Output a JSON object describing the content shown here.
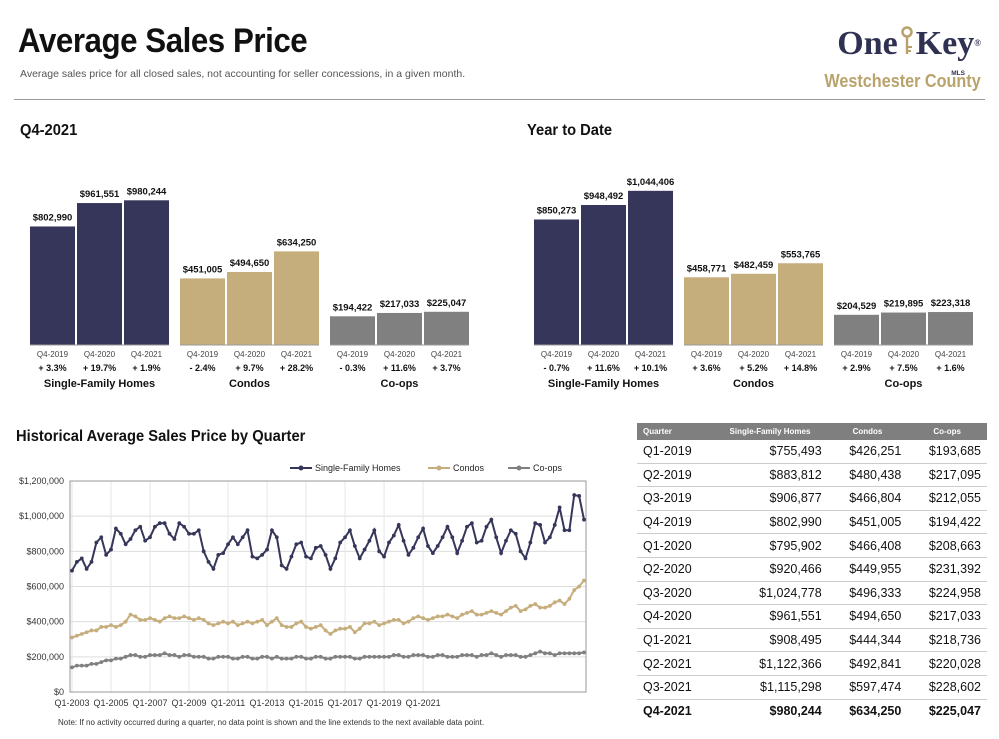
{
  "header": {
    "title": "Average Sales Price",
    "subtitle": "Average sales price for all closed sales, not accounting for seller concessions, in a given month.",
    "logo_left": "One",
    "logo_right": "Key",
    "logo_mls": "MLS",
    "logo_reg": "®",
    "county": "Westchester County"
  },
  "colors": {
    "sfh": "#35365a",
    "condo": "#c6ad7c",
    "coop": "#808080"
  },
  "sections": {
    "q4": "Q4-2021",
    "ytd": "Year to Date",
    "hist": "Historical Average Sales Price by Quarter"
  },
  "note": "Note: If no activity occurred during a quarter, no data point is shown and the line extends to the next available data point.",
  "chart_data": [
    {
      "type": "bar",
      "title": "Q4-2021",
      "groups": [
        {
          "name": "Single-Family Homes",
          "categories": [
            "Q4-2019",
            "Q4-2020",
            "Q4-2021"
          ],
          "values": [
            802990,
            961551,
            980244
          ],
          "labels": [
            "$802,990",
            "$961,551",
            "$980,244"
          ],
          "changes": [
            "+ 3.3%",
            "+ 19.7%",
            "+ 1.9%"
          ]
        },
        {
          "name": "Condos",
          "categories": [
            "Q4-2019",
            "Q4-2020",
            "Q4-2021"
          ],
          "values": [
            451005,
            494650,
            634250
          ],
          "labels": [
            "$451,005",
            "$494,650",
            "$634,250"
          ],
          "changes": [
            "- 2.4%",
            "+ 9.7%",
            "+ 28.2%"
          ]
        },
        {
          "name": "Co-ops",
          "categories": [
            "Q4-2019",
            "Q4-2020",
            "Q4-2021"
          ],
          "values": [
            194422,
            217033,
            225047
          ],
          "labels": [
            "$194,422",
            "$217,033",
            "$225,047"
          ],
          "changes": [
            "- 0.3%",
            "+ 11.6%",
            "+ 3.7%"
          ]
        }
      ]
    },
    {
      "type": "bar",
      "title": "Year to Date",
      "groups": [
        {
          "name": "Single-Family Homes",
          "categories": [
            "Q4-2019",
            "Q4-2020",
            "Q4-2021"
          ],
          "values": [
            850273,
            948492,
            1044406
          ],
          "labels": [
            "$850,273",
            "$948,492",
            "$1,044,406"
          ],
          "changes": [
            "- 0.7%",
            "+ 11.6%",
            "+ 10.1%"
          ]
        },
        {
          "name": "Condos",
          "categories": [
            "Q4-2019",
            "Q4-2020",
            "Q4-2021"
          ],
          "values": [
            458771,
            482459,
            553765
          ],
          "labels": [
            "$458,771",
            "$482,459",
            "$553,765"
          ],
          "changes": [
            "+ 3.6%",
            "+ 5.2%",
            "+ 14.8%"
          ]
        },
        {
          "name": "Co-ops",
          "categories": [
            "Q4-2019",
            "Q4-2020",
            "Q4-2021"
          ],
          "values": [
            204529,
            219895,
            223318
          ],
          "labels": [
            "$204,529",
            "$219,895",
            "$223,318"
          ],
          "changes": [
            "+ 2.9%",
            "+ 7.5%",
            "+ 1.6%"
          ]
        }
      ]
    },
    {
      "type": "line",
      "title": "Historical Average Sales Price by Quarter",
      "x_start": "Q1-2003",
      "x_ticks": [
        "Q1-2003",
        "Q1-2005",
        "Q1-2007",
        "Q1-2009",
        "Q1-2011",
        "Q1-2013",
        "Q1-2015",
        "Q1-2017",
        "Q1-2019",
        "Q1-2021"
      ],
      "y_ticks": [
        "$0",
        "$200,000",
        "$400,000",
        "$600,000",
        "$800,000",
        "$1,000,000",
        "$1,200,000"
      ],
      "ylim": [
        0,
        1200000
      ],
      "grid": true,
      "legend": "top-right",
      "series": [
        {
          "name": "Single-Family Homes",
          "values": [
            690000,
            740000,
            760000,
            700000,
            740000,
            850000,
            880000,
            780000,
            810000,
            930000,
            900000,
            840000,
            870000,
            920000,
            940000,
            860000,
            880000,
            940000,
            960000,
            960000,
            900000,
            870000,
            960000,
            940000,
            900000,
            900000,
            920000,
            800000,
            740000,
            700000,
            780000,
            790000,
            840000,
            880000,
            840000,
            880000,
            920000,
            770000,
            760000,
            780000,
            810000,
            920000,
            880000,
            720000,
            700000,
            770000,
            840000,
            850000,
            770000,
            760000,
            820000,
            830000,
            780000,
            700000,
            760000,
            850000,
            880000,
            920000,
            830000,
            760000,
            810000,
            860000,
            920000,
            800000,
            770000,
            850000,
            890000,
            950000,
            860000,
            780000,
            820000,
            880000,
            930000,
            830000,
            790000,
            830000,
            880000,
            940000,
            880000,
            790000,
            860000,
            940000,
            960000,
            850000,
            860000,
            940000,
            980000,
            880000,
            790000,
            860000,
            920000,
            900000,
            800000,
            760000,
            850000,
            960000,
            950000,
            850000,
            880000,
            950000,
            1050000,
            920000,
            920000,
            1120000,
            1115000,
            980000
          ]
        },
        {
          "name": "Condos",
          "values": [
            310000,
            320000,
            330000,
            340000,
            350000,
            350000,
            370000,
            370000,
            380000,
            370000,
            380000,
            400000,
            440000,
            430000,
            410000,
            410000,
            420000,
            410000,
            400000,
            420000,
            430000,
            420000,
            420000,
            430000,
            420000,
            410000,
            420000,
            410000,
            390000,
            380000,
            390000,
            400000,
            390000,
            400000,
            380000,
            390000,
            400000,
            390000,
            400000,
            410000,
            380000,
            400000,
            420000,
            380000,
            370000,
            370000,
            390000,
            400000,
            370000,
            360000,
            370000,
            380000,
            350000,
            330000,
            350000,
            360000,
            360000,
            370000,
            340000,
            360000,
            390000,
            390000,
            400000,
            380000,
            390000,
            400000,
            410000,
            410000,
            390000,
            400000,
            420000,
            430000,
            420000,
            410000,
            420000,
            430000,
            430000,
            440000,
            430000,
            420000,
            440000,
            450000,
            460000,
            440000,
            440000,
            450000,
            460000,
            450000,
            440000,
            460000,
            480000,
            490000,
            460000,
            470000,
            490000,
            500000,
            480000,
            480000,
            490000,
            510000,
            520000,
            500000,
            530000,
            580000,
            600000,
            634000
          ]
        },
        {
          "name": "Co-ops",
          "values": [
            140000,
            150000,
            150000,
            150000,
            160000,
            160000,
            170000,
            180000,
            180000,
            190000,
            190000,
            200000,
            210000,
            210000,
            200000,
            200000,
            210000,
            210000,
            210000,
            220000,
            210000,
            210000,
            200000,
            210000,
            210000,
            200000,
            200000,
            200000,
            190000,
            190000,
            200000,
            200000,
            200000,
            190000,
            190000,
            200000,
            200000,
            190000,
            190000,
            200000,
            200000,
            190000,
            200000,
            190000,
            190000,
            190000,
            200000,
            200000,
            190000,
            190000,
            200000,
            200000,
            190000,
            190000,
            200000,
            200000,
            200000,
            200000,
            190000,
            190000,
            200000,
            200000,
            200000,
            200000,
            200000,
            200000,
            210000,
            210000,
            200000,
            200000,
            210000,
            210000,
            210000,
            200000,
            200000,
            210000,
            210000,
            200000,
            200000,
            200000,
            210000,
            210000,
            210000,
            200000,
            210000,
            210000,
            220000,
            210000,
            200000,
            210000,
            210000,
            210000,
            200000,
            200000,
            210000,
            220000,
            230000,
            220000,
            220000,
            210000,
            220000,
            220000,
            220000,
            220000,
            220000,
            225000
          ]
        }
      ]
    },
    {
      "type": "table",
      "columns": [
        "Quarter",
        "Single-Family Homes",
        "Condos",
        "Co-ops"
      ],
      "rows": [
        [
          "Q1-2019",
          "$755,493",
          "$426,251",
          "$193,685"
        ],
        [
          "Q2-2019",
          "$883,812",
          "$480,438",
          "$217,095"
        ],
        [
          "Q3-2019",
          "$906,877",
          "$466,804",
          "$212,055"
        ],
        [
          "Q4-2019",
          "$802,990",
          "$451,005",
          "$194,422"
        ],
        [
          "Q1-2020",
          "$795,902",
          "$466,408",
          "$208,663"
        ],
        [
          "Q2-2020",
          "$920,466",
          "$449,955",
          "$231,392"
        ],
        [
          "Q3-2020",
          "$1,024,778",
          "$496,333",
          "$224,958"
        ],
        [
          "Q4-2020",
          "$961,551",
          "$494,650",
          "$217,033"
        ],
        [
          "Q1-2021",
          "$908,495",
          "$444,344",
          "$218,736"
        ],
        [
          "Q2-2021",
          "$1,122,366",
          "$492,841",
          "$220,028"
        ],
        [
          "Q3-2021",
          "$1,115,298",
          "$597,474",
          "$228,602"
        ],
        [
          "Q4-2021",
          "$980,244",
          "$634,250",
          "$225,047"
        ]
      ]
    }
  ]
}
